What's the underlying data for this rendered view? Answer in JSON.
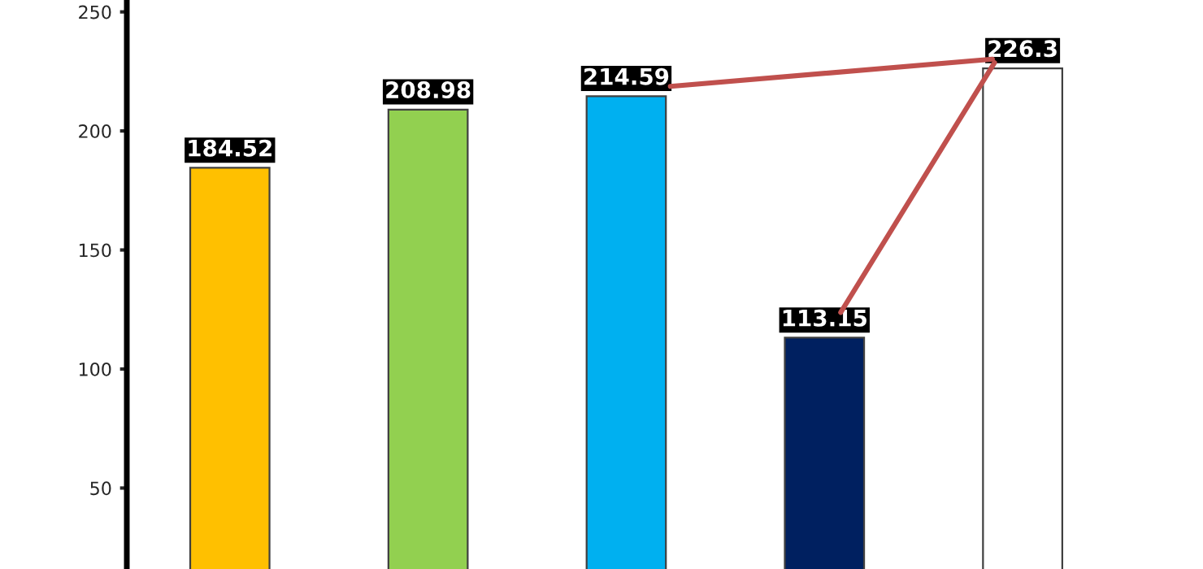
{
  "chart_data": {
    "type": "bar",
    "categories": [
      null,
      null,
      null,
      null,
      null
    ],
    "values": [
      184.52,
      208.98,
      214.59,
      113.15,
      226.3
    ],
    "colors": [
      "#ffc000",
      "#92d050",
      "#00b0f0",
      "#002060",
      "#ffffff"
    ],
    "ylim": [
      16,
      255
    ],
    "yticks": [
      50,
      100,
      150,
      200,
      250
    ],
    "data_labels": true,
    "grid": false,
    "legend": false
  }
}
